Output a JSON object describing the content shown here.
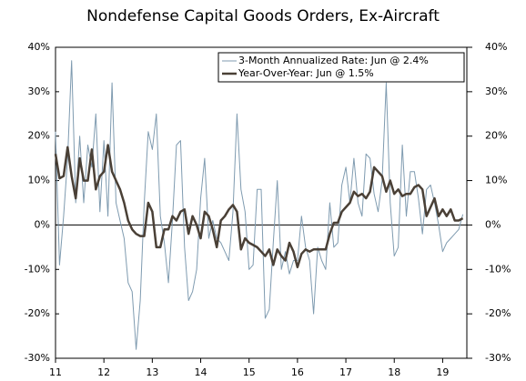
{
  "chart_data": {
    "type": "line",
    "title": "Nondefense Capital Goods Orders, Ex-Aircraft",
    "x": [
      11,
      11.083,
      11.167,
      11.25,
      11.333,
      11.417,
      11.5,
      11.583,
      11.667,
      11.75,
      11.833,
      11.917,
      12,
      12.083,
      12.167,
      12.25,
      12.333,
      12.417,
      12.5,
      12.583,
      12.667,
      12.75,
      12.833,
      12.917,
      13,
      13.083,
      13.167,
      13.25,
      13.333,
      13.417,
      13.5,
      13.583,
      13.667,
      13.75,
      13.833,
      13.917,
      14,
      14.083,
      14.167,
      14.25,
      14.333,
      14.417,
      14.5,
      14.583,
      14.667,
      14.75,
      14.833,
      14.917,
      15,
      15.083,
      15.167,
      15.25,
      15.333,
      15.417,
      15.5,
      15.583,
      15.667,
      15.75,
      15.833,
      15.917,
      16,
      16.083,
      16.167,
      16.25,
      16.333,
      16.417,
      16.5,
      16.583,
      16.667,
      16.75,
      16.833,
      16.917,
      17,
      17.083,
      17.167,
      17.25,
      17.333,
      17.417,
      17.5,
      17.583,
      17.667,
      17.75,
      17.833,
      17.917,
      18,
      18.083,
      18.167,
      18.25,
      18.333,
      18.417,
      18.5,
      18.583,
      18.667,
      18.75,
      18.833,
      18.917,
      19,
      19.083,
      19.167,
      19.25,
      19.333,
      19.417
    ],
    "series": [
      {
        "name": "3-Month Annualized Rate: Jun @ 2.4%",
        "color": "#7f9bb0",
        "width": 1,
        "values": [
          21,
          -9,
          2,
          15,
          37,
          5,
          20,
          5,
          18,
          13,
          25,
          3,
          19,
          2,
          32,
          5,
          1,
          -3,
          -13,
          -15,
          -28,
          -17,
          5,
          21,
          17,
          25,
          2,
          -4,
          -13,
          1,
          18,
          19,
          -5,
          -17,
          -15,
          -10,
          6,
          15,
          -3,
          1,
          -3,
          -4,
          -6,
          -8,
          3,
          25,
          8,
          3,
          -10,
          -9,
          8,
          8,
          -21,
          -19,
          -4,
          10,
          -10,
          -6,
          -11,
          -8,
          -8,
          2,
          -5,
          -8,
          -20,
          -5,
          -8,
          -10,
          5,
          -5,
          -4,
          9,
          13,
          5,
          15,
          5,
          2,
          16,
          15,
          7,
          3,
          10,
          32,
          5,
          -7,
          -5,
          18,
          2,
          12,
          12,
          6,
          -2,
          8,
          9,
          5,
          0,
          -6,
          -4,
          -3,
          -2,
          -1,
          2.4
        ]
      },
      {
        "name": "Year-Over-Year: Jun @ 1.5%",
        "color": "#4a4036",
        "width": 2.5,
        "values": [
          16,
          10.5,
          11,
          17.5,
          11,
          6,
          15,
          10,
          10,
          17,
          8,
          11,
          12,
          18,
          12,
          10,
          8,
          5,
          1,
          -1,
          -2,
          -2.5,
          -2.5,
          5,
          3,
          -5,
          -5,
          -1,
          -1,
          2,
          1,
          3,
          3.5,
          -2,
          2,
          0,
          -3,
          3,
          2,
          -1,
          -5,
          1,
          2,
          3.5,
          4.5,
          3,
          -5.5,
          -3,
          -4,
          -4.5,
          -5,
          -6,
          -7,
          -5.5,
          -9,
          -5.5,
          -7,
          -8,
          -4,
          -6,
          -9.5,
          -6.5,
          -5.5,
          -6,
          -5.5,
          -5.5,
          -5.5,
          -5.5,
          -2,
          0.5,
          0.5,
          3,
          4,
          5,
          7.5,
          6.5,
          7,
          6,
          7.5,
          13,
          12,
          11,
          7.5,
          10,
          7,
          8,
          6.5,
          7,
          7,
          8.5,
          9,
          8,
          2,
          4,
          6,
          2,
          3.5,
          2,
          3.5,
          1,
          1,
          1.5
        ]
      }
    ],
    "xlim": [
      11,
      19.5
    ],
    "xticks": [
      11,
      12,
      13,
      14,
      15,
      16,
      17,
      18,
      19
    ],
    "ylim": [
      -30,
      40
    ],
    "yticks": [
      {
        "value": -30,
        "label": "-30%"
      },
      {
        "value": -20,
        "label": "-20%"
      },
      {
        "value": -10,
        "label": "-10%"
      },
      {
        "value": 0,
        "label": "0%"
      },
      {
        "value": 10,
        "label": "10%"
      },
      {
        "value": 20,
        "label": "20%"
      },
      {
        "value": 30,
        "label": "30%"
      },
      {
        "value": 40,
        "label": "40%"
      }
    ],
    "y2lim": [
      -30,
      40
    ],
    "y2ticks": [
      {
        "value": -30,
        "label": "-30%"
      },
      {
        "value": -20,
        "label": "-20%"
      },
      {
        "value": -10,
        "label": "-10%"
      },
      {
        "value": 0,
        "label": "0%"
      },
      {
        "value": 10,
        "label": "10%"
      },
      {
        "value": 20,
        "label": "20%"
      },
      {
        "value": 30,
        "label": "30%"
      },
      {
        "value": 40,
        "label": "40%"
      }
    ],
    "legend": "upper right"
  }
}
